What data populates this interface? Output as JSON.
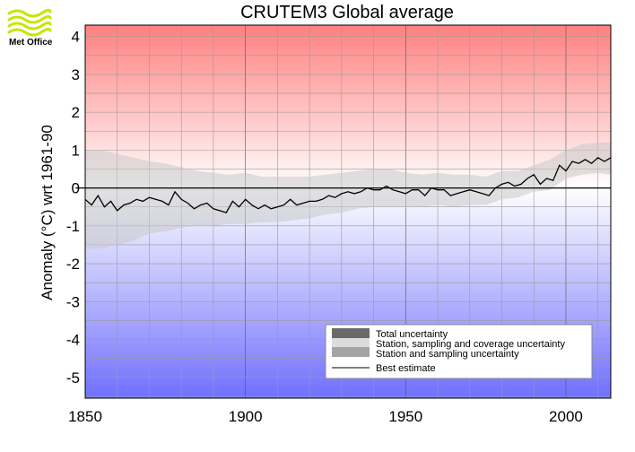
{
  "logo": {
    "text": "Met Office"
  },
  "chart_data": {
    "type": "line",
    "title": "CRUTEM3 Global average",
    "xlabel": "",
    "ylabel": "Anomaly (°C) wrt 1961-90",
    "xlim": [
      1850,
      2014
    ],
    "ylim": [
      -5.55,
      4.3
    ],
    "x_ticks": [
      1850,
      1900,
      1950,
      2000
    ],
    "y_ticks": [
      -5,
      -4,
      -3,
      -2,
      -1,
      0,
      1,
      2,
      3,
      4
    ],
    "grid": true,
    "background": {
      "top_color": "#ff8080",
      "bottom_color": "#7070ff",
      "neutral_at": 0
    },
    "legend": {
      "position": "bottom-right",
      "entries": [
        {
          "label": "Total uncertainty",
          "swatch": "#6a6a6a"
        },
        {
          "label": "Station, sampling and coverage uncertainty",
          "swatch": "#dcdcdc"
        },
        {
          "label": "Station and sampling uncertainty",
          "swatch": "#a4a4a4"
        },
        {
          "label": "Best estimate",
          "line": "#000000"
        }
      ]
    },
    "reference_line": {
      "y": 0,
      "from_x": 1847
    },
    "series": [
      {
        "name": "Best estimate",
        "x": [
          1850,
          1852,
          1854,
          1856,
          1858,
          1860,
          1862,
          1864,
          1866,
          1868,
          1870,
          1872,
          1874,
          1876,
          1878,
          1880,
          1882,
          1884,
          1886,
          1888,
          1890,
          1892,
          1894,
          1896,
          1898,
          1900,
          1902,
          1904,
          1906,
          1908,
          1910,
          1912,
          1914,
          1916,
          1918,
          1920,
          1922,
          1924,
          1926,
          1928,
          1930,
          1932,
          1934,
          1936,
          1938,
          1940,
          1942,
          1944,
          1946,
          1948,
          1950,
          1952,
          1954,
          1956,
          1958,
          1960,
          1962,
          1964,
          1966,
          1968,
          1970,
          1972,
          1974,
          1976,
          1978,
          1980,
          1982,
          1984,
          1986,
          1988,
          1990,
          1992,
          1994,
          1996,
          1998,
          2000,
          2002,
          2004,
          2006,
          2008,
          2010,
          2012,
          2014
        ],
        "y": [
          -0.3,
          -0.45,
          -0.2,
          -0.5,
          -0.35,
          -0.6,
          -0.45,
          -0.4,
          -0.3,
          -0.35,
          -0.25,
          -0.3,
          -0.35,
          -0.45,
          -0.1,
          -0.3,
          -0.4,
          -0.55,
          -0.45,
          -0.4,
          -0.55,
          -0.6,
          -0.65,
          -0.35,
          -0.5,
          -0.3,
          -0.45,
          -0.55,
          -0.45,
          -0.55,
          -0.5,
          -0.45,
          -0.3,
          -0.45,
          -0.4,
          -0.35,
          -0.35,
          -0.3,
          -0.2,
          -0.25,
          -0.15,
          -0.1,
          -0.15,
          -0.1,
          0.0,
          -0.05,
          -0.05,
          0.05,
          -0.05,
          -0.1,
          -0.15,
          -0.05,
          -0.05,
          -0.2,
          0.0,
          -0.05,
          -0.05,
          -0.2,
          -0.15,
          -0.1,
          -0.05,
          -0.1,
          -0.15,
          -0.2,
          0.0,
          0.1,
          0.15,
          0.05,
          0.1,
          0.25,
          0.35,
          0.1,
          0.25,
          0.2,
          0.6,
          0.45,
          0.7,
          0.65,
          0.75,
          0.65,
          0.8,
          0.7,
          0.8
        ]
      },
      {
        "name": "Total uncertainty",
        "x": [
          1850,
          1855,
          1860,
          1865,
          1870,
          1875,
          1880,
          1885,
          1890,
          1895,
          1900,
          1905,
          1910,
          1915,
          1920,
          1925,
          1930,
          1935,
          1940,
          1945,
          1950,
          1955,
          1960,
          1965,
          1970,
          1975,
          1980,
          1985,
          1990,
          1995,
          2000,
          2005,
          2010,
          2014
        ],
        "lower": [
          -1.6,
          -1.6,
          -1.5,
          -1.4,
          -1.2,
          -1.15,
          -1.05,
          -1.0,
          -1.0,
          -0.95,
          -0.95,
          -0.9,
          -0.9,
          -0.85,
          -0.8,
          -0.7,
          -0.65,
          -0.55,
          -0.5,
          -0.5,
          -0.5,
          -0.5,
          -0.45,
          -0.5,
          -0.45,
          -0.45,
          -0.3,
          -0.25,
          -0.1,
          -0.05,
          0.25,
          0.35,
          0.4,
          0.35
        ],
        "upper": [
          1.0,
          1.0,
          0.9,
          0.8,
          0.7,
          0.65,
          0.55,
          0.45,
          0.4,
          0.35,
          0.4,
          0.3,
          0.3,
          0.3,
          0.3,
          0.35,
          0.4,
          0.45,
          0.5,
          0.5,
          0.4,
          0.35,
          0.4,
          0.35,
          0.35,
          0.3,
          0.45,
          0.45,
          0.6,
          0.75,
          1.0,
          1.15,
          1.2,
          1.2
        ]
      }
    ]
  }
}
